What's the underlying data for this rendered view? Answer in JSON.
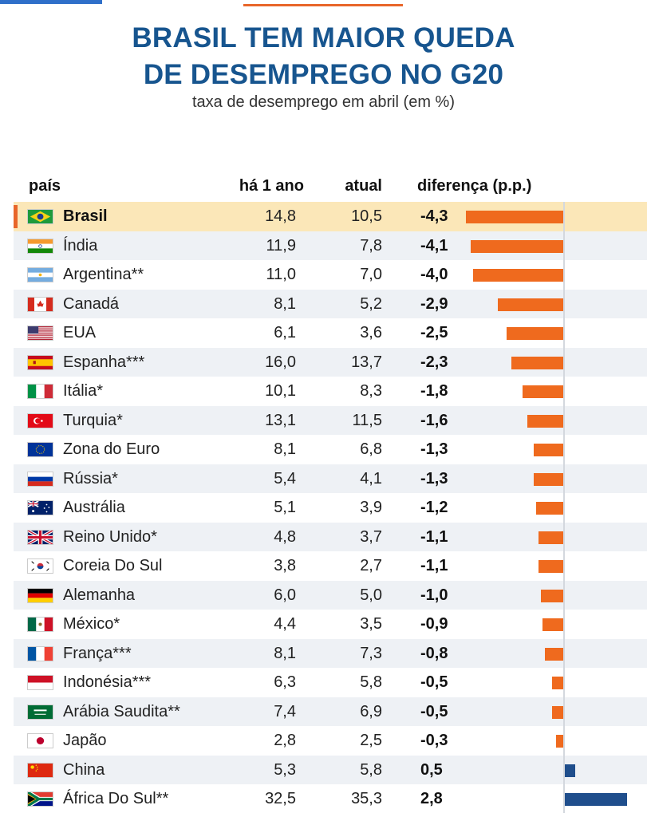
{
  "title_line1": "BRASIL TEM MAIOR QUEDA",
  "title_line2": "DE DESEMPREGO NO G20",
  "subtitle": "taxa de desemprego em abril (em %)",
  "columns": {
    "pais": "país",
    "ha1ano": "há 1 ano",
    "atual": "atual",
    "diferenca": "diferença (p.p.)"
  },
  "colors": {
    "title": "#17558f",
    "negative": "#ef6a1e",
    "positive": "#1f4e8c",
    "highlight": "#fbe7b8"
  },
  "chart_data": {
    "type": "table",
    "title": "BRASIL TEM MAIOR QUEDA DE DESEMPREGO NO G20",
    "subtitle": "taxa de desemprego em abril (em %)",
    "columns": [
      "país",
      "há 1 ano",
      "atual",
      "diferença (p.p.)"
    ],
    "bar_range": [
      -4.3,
      2.8
    ],
    "rows": [
      {
        "flag": "brazil",
        "name": "Brasil",
        "prev": "14,8",
        "curr": "10,5",
        "diff_label": "-4,3",
        "diff": -4.3,
        "highlight": true
      },
      {
        "flag": "india",
        "name": "Índia",
        "prev": "11,9",
        "curr": "7,8",
        "diff_label": "-4,1",
        "diff": -4.1
      },
      {
        "flag": "argentina",
        "name": "Argentina**",
        "prev": "11,0",
        "curr": "7,0",
        "diff_label": "-4,0",
        "diff": -4.0
      },
      {
        "flag": "canada",
        "name": "Canadá",
        "prev": "8,1",
        "curr": "5,2",
        "diff_label": "-2,9",
        "diff": -2.9
      },
      {
        "flag": "usa",
        "name": "EUA",
        "prev": "6,1",
        "curr": "3,6",
        "diff_label": "-2,5",
        "diff": -2.5
      },
      {
        "flag": "spain",
        "name": "Espanha***",
        "prev": "16,0",
        "curr": "13,7",
        "diff_label": "-2,3",
        "diff": -2.3
      },
      {
        "flag": "italy",
        "name": "Itália*",
        "prev": "10,1",
        "curr": "8,3",
        "diff_label": "-1,8",
        "diff": -1.8
      },
      {
        "flag": "turkey",
        "name": "Turquia*",
        "prev": "13,1",
        "curr": "11,5",
        "diff_label": "-1,6",
        "diff": -1.6
      },
      {
        "flag": "eu",
        "name": "Zona do Euro",
        "prev": "8,1",
        "curr": "6,8",
        "diff_label": "-1,3",
        "diff": -1.3
      },
      {
        "flag": "russia",
        "name": "Rússia*",
        "prev": "5,4",
        "curr": "4,1",
        "diff_label": "-1,3",
        "diff": -1.3
      },
      {
        "flag": "australia",
        "name": "Austrália",
        "prev": "5,1",
        "curr": "3,9",
        "diff_label": "-1,2",
        "diff": -1.2
      },
      {
        "flag": "uk",
        "name": "Reino Unido*",
        "prev": "4,8",
        "curr": "3,7",
        "diff_label": "-1,1",
        "diff": -1.1
      },
      {
        "flag": "korea",
        "name": "Coreia Do Sul",
        "prev": "3,8",
        "curr": "2,7",
        "diff_label": "-1,1",
        "diff": -1.1
      },
      {
        "flag": "germany",
        "name": "Alemanha",
        "prev": "6,0",
        "curr": "5,0",
        "diff_label": "-1,0",
        "diff": -1.0
      },
      {
        "flag": "mexico",
        "name": "México*",
        "prev": "4,4",
        "curr": "3,5",
        "diff_label": "-0,9",
        "diff": -0.9
      },
      {
        "flag": "france",
        "name": "França***",
        "prev": "8,1",
        "curr": "7,3",
        "diff_label": "-0,8",
        "diff": -0.8
      },
      {
        "flag": "indonesia",
        "name": "Indonésia***",
        "prev": "6,3",
        "curr": "5,8",
        "diff_label": "-0,5",
        "diff": -0.5
      },
      {
        "flag": "saudi",
        "name": "Arábia Saudita**",
        "prev": "7,4",
        "curr": "6,9",
        "diff_label": "-0,5",
        "diff": -0.5
      },
      {
        "flag": "japan",
        "name": "Japão",
        "prev": "2,8",
        "curr": "2,5",
        "diff_label": "-0,3",
        "diff": -0.3
      },
      {
        "flag": "china",
        "name": "China",
        "prev": "5,3",
        "curr": "5,8",
        "diff_label": "0,5",
        "diff": 0.5
      },
      {
        "flag": "south-africa",
        "name": "África Do Sul**",
        "prev": "32,5",
        "curr": "35,3",
        "diff_label": "2,8",
        "diff": 2.8
      }
    ]
  }
}
